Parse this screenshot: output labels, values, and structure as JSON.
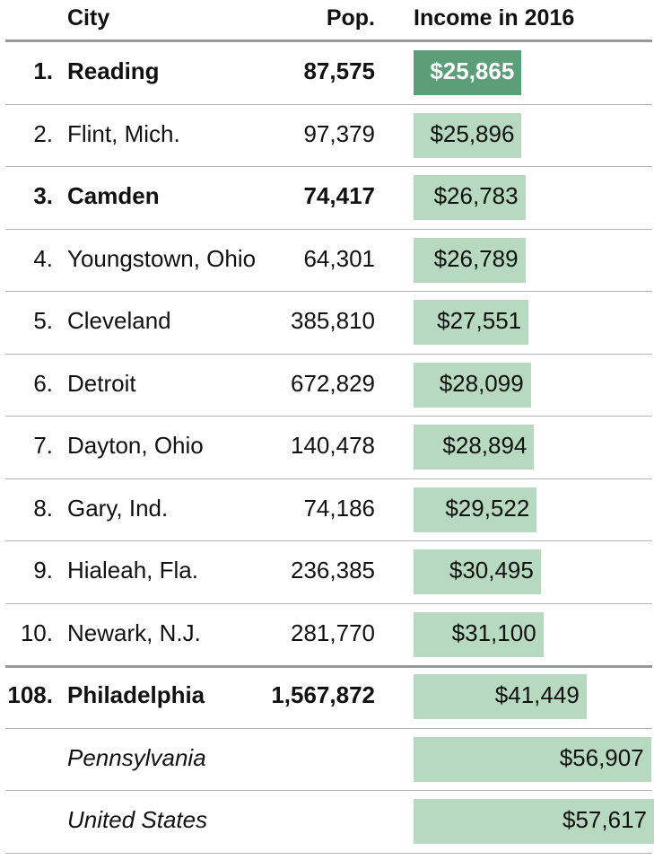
{
  "header": {
    "city": "City",
    "pop": "Pop.",
    "income": "Income in 2016"
  },
  "colors": {
    "bar": "#b6d9c0",
    "bar_highlight": "#5b9e77",
    "rule": "#999999"
  },
  "chart_data": {
    "type": "bar",
    "orientation": "horizontal",
    "xlim": [
      0,
      57617
    ],
    "rows": [
      {
        "rank": "1.",
        "city": "Reading",
        "pop": "87,575",
        "income": 25865,
        "label": "$25,865",
        "bold": true,
        "highlight": true
      },
      {
        "rank": "2.",
        "city": "Flint, Mich.",
        "pop": "97,379",
        "income": 25896,
        "label": "$25,896"
      },
      {
        "rank": "3.",
        "city": "Camden",
        "pop": "74,417",
        "income": 26783,
        "label": "$26,783",
        "bold": true
      },
      {
        "rank": "4.",
        "city": "Youngstown, Ohio",
        "pop": "64,301",
        "income": 26789,
        "label": "$26,789"
      },
      {
        "rank": "5.",
        "city": "Cleveland",
        "pop": "385,810",
        "income": 27551,
        "label": "$27,551"
      },
      {
        "rank": "6.",
        "city": "Detroit",
        "pop": "672,829",
        "income": 28099,
        "label": "$28,099"
      },
      {
        "rank": "7.",
        "city": "Dayton, Ohio",
        "pop": "140,478",
        "income": 28894,
        "label": "$28,894"
      },
      {
        "rank": "8.",
        "city": "Gary, Ind.",
        "pop": "74,186",
        "income": 29522,
        "label": "$29,522"
      },
      {
        "rank": "9.",
        "city": "Hialeah, Fla.",
        "pop": "236,385",
        "income": 30495,
        "label": "$30,495"
      },
      {
        "rank": "10.",
        "city": "Newark, N.J.",
        "pop": "281,770",
        "income": 31100,
        "label": "$31,100"
      },
      {
        "rank": "108.",
        "city": "Philadelphia",
        "pop": "1,567,872",
        "income": 41449,
        "label": "$41,449",
        "bold": true
      },
      {
        "rank": "",
        "city": "Pennsylvania",
        "pop": "",
        "income": 56907,
        "label": "$56,907",
        "italic": true
      },
      {
        "rank": "",
        "city": "United States",
        "pop": "",
        "income": 57617,
        "label": "$57,617",
        "italic": true
      }
    ]
  }
}
